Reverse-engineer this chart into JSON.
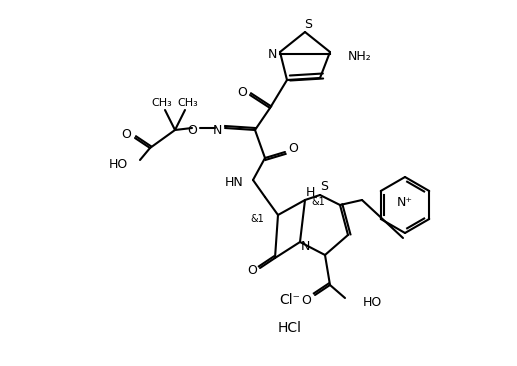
{
  "bg_color": "#ffffff",
  "line_color": "#000000",
  "line_width": 1.5,
  "font_size": 9,
  "title": "",
  "cl_minus_text": "Cl⁻",
  "hcl_text": "HCl",
  "nh2_text": "NH₂",
  "n_text": "N",
  "s_text": "S",
  "o_text": "O",
  "h_text": "H",
  "ho_text": "HO",
  "hn_text": "HN",
  "n_plus_text": "N⁺",
  "stereo1": "&1",
  "stereo2": "&1"
}
